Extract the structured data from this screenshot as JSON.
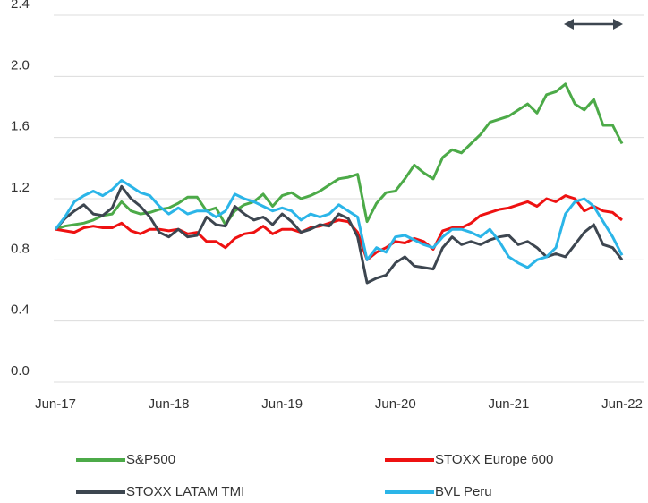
{
  "chart_data": {
    "type": "line",
    "categories": [
      "Jun-17",
      null,
      null,
      null,
      null,
      null,
      null,
      null,
      null,
      null,
      null,
      null,
      "Jun-18",
      null,
      null,
      null,
      null,
      null,
      null,
      null,
      null,
      null,
      null,
      null,
      "Jun-19",
      null,
      null,
      null,
      null,
      null,
      null,
      null,
      null,
      null,
      null,
      null,
      "Jun-20",
      null,
      null,
      null,
      null,
      null,
      null,
      null,
      null,
      null,
      null,
      null,
      "Jun-21",
      null,
      null,
      null,
      null,
      null,
      null,
      null,
      null,
      null,
      null,
      null,
      "Jun-22"
    ],
    "ylim": [
      0,
      2.4
    ],
    "yticks": [
      {
        "value": 0,
        "label": "0.0"
      },
      0.4,
      0.8,
      1.2,
      1.6,
      {
        "value": 2,
        "label": "2.0"
      },
      2.4
    ],
    "grid": true,
    "series": [
      {
        "name": "S&P500",
        "color": "#4caa48",
        "values": [
          1.0,
          1.02,
          1.03,
          1.04,
          1.06,
          1.09,
          1.1,
          1.18,
          1.12,
          1.1,
          1.11,
          1.13,
          1.14,
          1.17,
          1.21,
          1.21,
          1.12,
          1.14,
          1.03,
          1.12,
          1.16,
          1.18,
          1.23,
          1.15,
          1.22,
          1.24,
          1.2,
          1.22,
          1.25,
          1.29,
          1.33,
          1.34,
          1.36,
          1.05,
          1.17,
          1.24,
          1.25,
          1.33,
          1.42,
          1.37,
          1.33,
          1.47,
          1.52,
          1.5,
          1.56,
          1.62,
          1.7,
          1.72,
          1.74,
          1.78,
          1.82,
          1.76,
          1.88,
          1.9,
          1.95,
          1.82,
          1.78,
          1.85,
          1.68,
          1.68,
          1.56
        ]
      },
      {
        "name": "STOXX Europe 600",
        "color": "#ee1111",
        "values": [
          1.0,
          0.99,
          0.98,
          1.01,
          1.02,
          1.01,
          1.01,
          1.04,
          0.99,
          0.97,
          1.0,
          1.0,
          0.99,
          1.0,
          0.97,
          0.98,
          0.92,
          0.92,
          0.88,
          0.94,
          0.97,
          0.98,
          1.02,
          0.97,
          1.0,
          1.0,
          0.98,
          1.01,
          1.02,
          1.04,
          1.06,
          1.05,
          0.98,
          0.8,
          0.85,
          0.88,
          0.92,
          0.91,
          0.94,
          0.92,
          0.87,
          0.99,
          1.01,
          1.01,
          1.04,
          1.09,
          1.11,
          1.13,
          1.14,
          1.16,
          1.18,
          1.15,
          1.2,
          1.18,
          1.22,
          1.2,
          1.12,
          1.15,
          1.12,
          1.11,
          1.06
        ]
      },
      {
        "name": "STOXX LATAM TMI",
        "color": "#3d4650",
        "values": [
          1.0,
          1.07,
          1.12,
          1.16,
          1.1,
          1.09,
          1.14,
          1.28,
          1.2,
          1.15,
          1.08,
          0.98,
          0.95,
          1.0,
          0.95,
          0.96,
          1.08,
          1.03,
          1.02,
          1.15,
          1.1,
          1.06,
          1.08,
          1.03,
          1.1,
          1.05,
          0.98,
          1.0,
          1.03,
          1.02,
          1.1,
          1.07,
          0.95,
          0.65,
          0.68,
          0.7,
          0.78,
          0.82,
          0.76,
          0.75,
          0.74,
          0.88,
          0.95,
          0.9,
          0.92,
          0.9,
          0.93,
          0.95,
          0.96,
          0.9,
          0.92,
          0.88,
          0.82,
          0.84,
          0.82,
          0.9,
          0.98,
          1.03,
          0.9,
          0.88,
          0.8
        ]
      },
      {
        "name": "BVL Peru",
        "color": "#2bb5e8",
        "values": [
          1.0,
          1.08,
          1.18,
          1.22,
          1.25,
          1.22,
          1.26,
          1.32,
          1.28,
          1.24,
          1.22,
          1.15,
          1.1,
          1.14,
          1.1,
          1.12,
          1.12,
          1.08,
          1.12,
          1.23,
          1.2,
          1.18,
          1.15,
          1.12,
          1.14,
          1.12,
          1.06,
          1.1,
          1.08,
          1.1,
          1.16,
          1.12,
          1.08,
          0.8,
          0.88,
          0.85,
          0.95,
          0.96,
          0.93,
          0.9,
          0.88,
          0.95,
          1.0,
          1.0,
          0.98,
          0.95,
          1.0,
          0.92,
          0.82,
          0.78,
          0.75,
          0.8,
          0.82,
          0.88,
          1.1,
          1.18,
          1.2,
          1.15,
          1.05,
          0.95,
          0.83
        ]
      }
    ]
  }
}
